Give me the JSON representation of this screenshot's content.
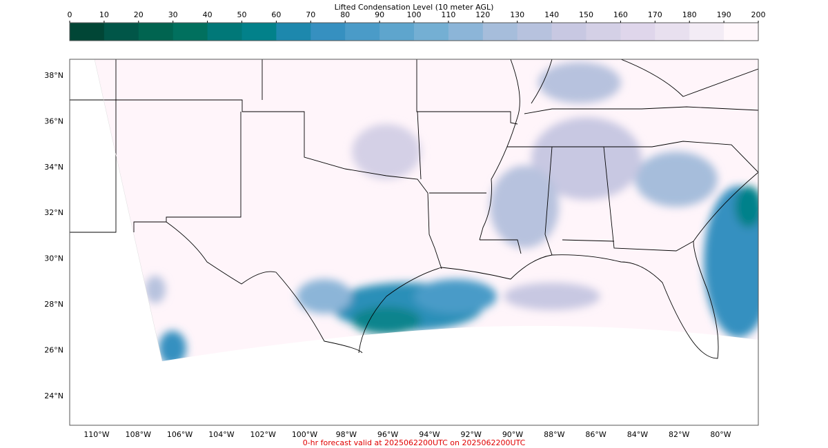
{
  "colorbar": {
    "title": "Lifted Condensation Level (10 meter AGL)",
    "ticks": [
      0,
      10,
      20,
      30,
      40,
      50,
      60,
      70,
      80,
      90,
      100,
      110,
      120,
      130,
      140,
      150,
      160,
      170,
      180,
      190,
      200
    ],
    "colors": [
      "#014636",
      "#015648",
      "#016450",
      "#01705e",
      "#017878",
      "#02818a",
      "#1d88ad",
      "#3690c0",
      "#4a9bc8",
      "#5ea5cd",
      "#74afd3",
      "#8cb5d8",
      "#a6bddb",
      "#b7c2de",
      "#c8c8e2",
      "#d4d0e6",
      "#dfd6eb",
      "#e8e0ef",
      "#f3ecf5",
      "#fff7fb"
    ]
  },
  "map": {
    "lat_labels": [
      "38°N",
      "36°N",
      "34°N",
      "32°N",
      "30°N",
      "28°N",
      "26°N",
      "24°N"
    ],
    "lon_labels": [
      "110°W",
      "108°W",
      "106°W",
      "104°W",
      "102°W",
      "100°W",
      "98°W",
      "96°W",
      "94°W",
      "92°W",
      "90°W",
      "88°W",
      "86°W",
      "84°W",
      "82°W",
      "80°W"
    ]
  },
  "footer": "0-hr forecast valid at 2025062200UTC on 2025062200UTC"
}
